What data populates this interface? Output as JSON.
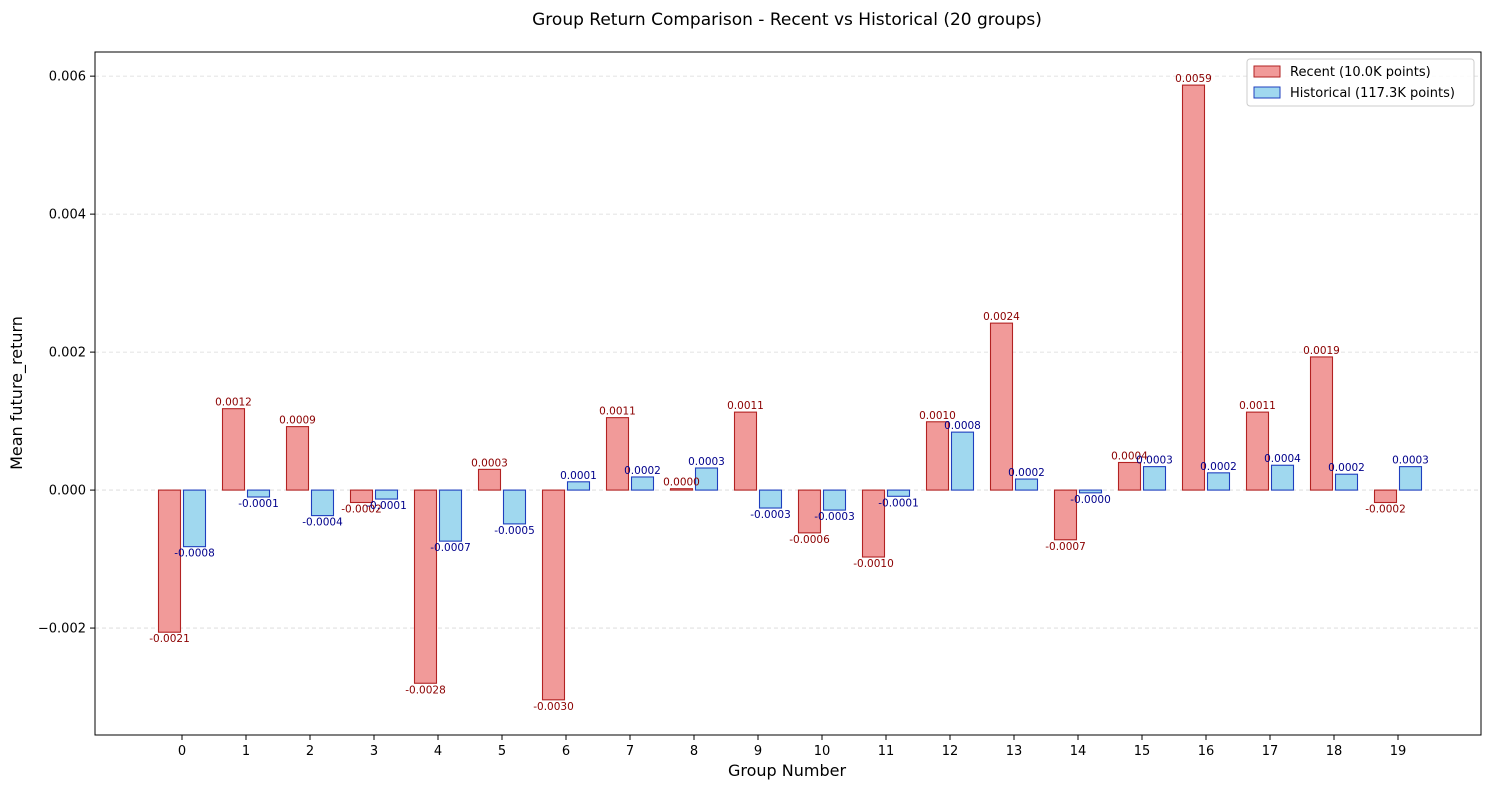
{
  "chart_data": {
    "type": "bar",
    "title": "Group Return Comparison - Recent vs Historical (20 groups)",
    "xlabel": "Group Number",
    "ylabel": "Mean future_return",
    "categories": [
      "0",
      "1",
      "2",
      "3",
      "4",
      "5",
      "6",
      "7",
      "8",
      "9",
      "10",
      "11",
      "12",
      "13",
      "14",
      "15",
      "16",
      "17",
      "18",
      "19"
    ],
    "ylim": [
      -0.00355,
      0.00635
    ],
    "yticks": [
      -0.002,
      0.0,
      0.002,
      0.004,
      0.006
    ],
    "ytick_labels": [
      "−0.002",
      "0.000",
      "0.002",
      "0.004",
      "0.006"
    ],
    "grid": "y-dashed",
    "legend_position": "top-right",
    "series": [
      {
        "name": "Recent (10.0K points)",
        "fill": "#f19a99",
        "stroke": "#b22222",
        "label_color": "#8b0000",
        "values": [
          -0.00206,
          0.00118,
          0.00092,
          -0.00018,
          -0.0028,
          0.0003,
          -0.00304,
          0.00105,
          2e-05,
          0.00113,
          -0.00062,
          -0.00097,
          0.00099,
          0.00242,
          -0.00072,
          0.0004,
          0.00587,
          0.00113,
          0.00193,
          -0.00018
        ],
        "labels": [
          "-0.0021",
          "0.0012",
          "0.0009",
          "-0.0002",
          "-0.0028",
          "0.0003",
          "-0.0030",
          "0.0011",
          "0.0000",
          "0.0011",
          "-0.0006",
          "-0.0010",
          "0.0010",
          "0.0024",
          "-0.0007",
          "0.0004",
          "0.0059",
          "0.0011",
          "0.0019",
          "-0.0002"
        ]
      },
      {
        "name": "Historical (117.3K points)",
        "fill": "#a0d8ef",
        "stroke": "#1f3fbf",
        "label_color": "#00008b",
        "values": [
          -0.00082,
          -0.0001,
          -0.00037,
          -0.00013,
          -0.00074,
          -0.00049,
          0.00012,
          0.00019,
          0.00032,
          -0.00026,
          -0.00029,
          -9e-05,
          0.00084,
          0.00016,
          -4e-05,
          0.00034,
          0.00025,
          0.00036,
          0.00023,
          0.00034
        ],
        "labels": [
          "-0.0008",
          "-0.0001",
          "-0.0004",
          "-0.0001",
          "-0.0007",
          "-0.0005",
          "0.0001",
          "0.0002",
          "0.0003",
          "-0.0003",
          "-0.0003",
          "-0.0001",
          "0.0008",
          "0.0002",
          "-0.0000",
          "0.0003",
          "0.0002",
          "0.0004",
          "0.0002",
          "0.0003"
        ]
      }
    ]
  }
}
